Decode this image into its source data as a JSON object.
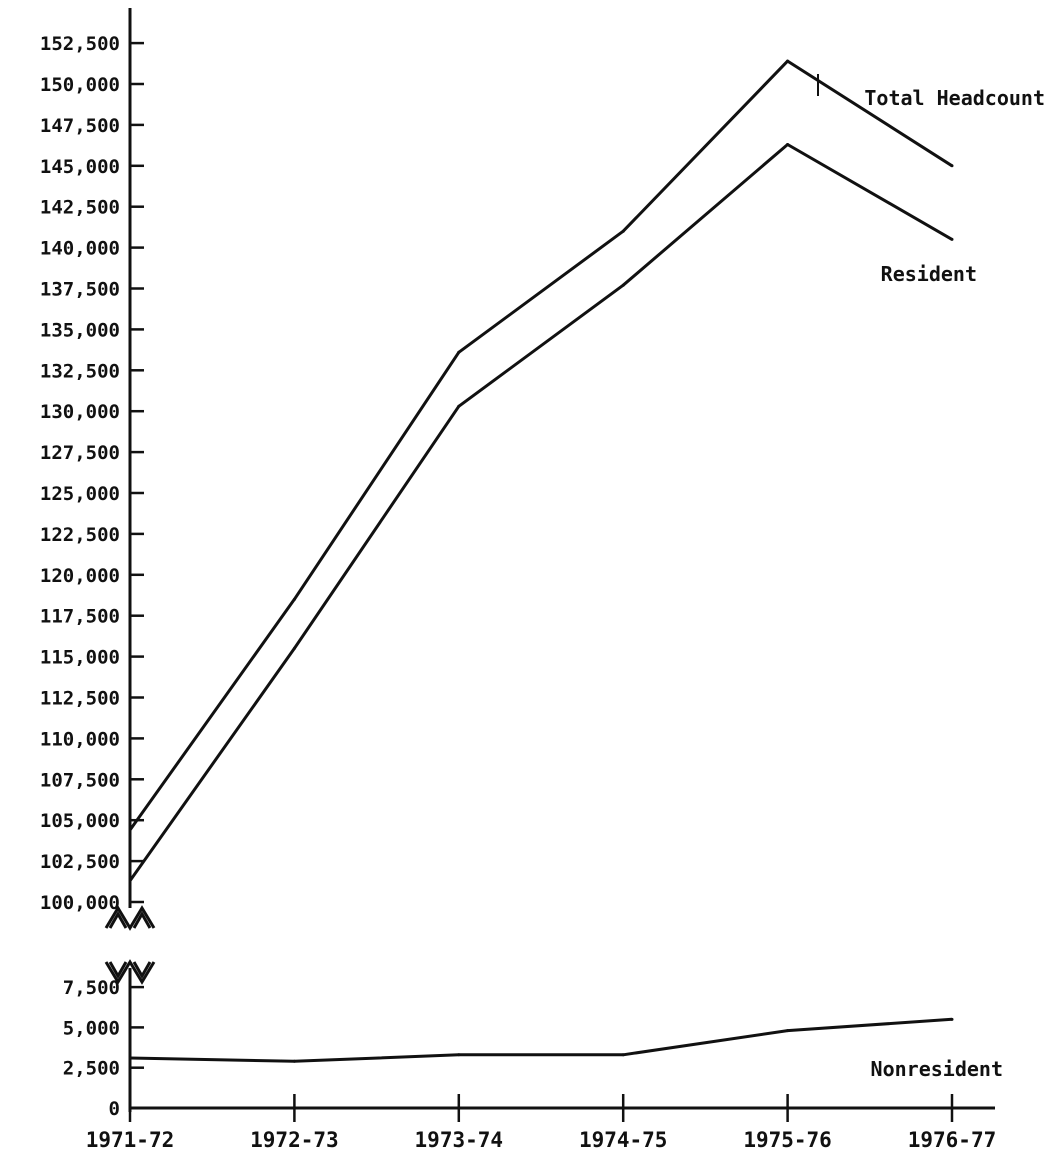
{
  "chart_data": {
    "type": "line",
    "title": "",
    "xlabel": "",
    "ylabel": "",
    "grid": false,
    "categories": [
      "1971-72",
      "1972-73",
      "1973-74",
      "1974-75",
      "1975-76",
      "1976-77"
    ],
    "upper_panel": {
      "ylim": [
        100000,
        152500
      ],
      "ticks": [
        100000,
        102500,
        105000,
        107500,
        110000,
        112500,
        115000,
        117500,
        120000,
        122500,
        125000,
        127500,
        130000,
        132500,
        135000,
        137500,
        140000,
        142500,
        145000,
        147500,
        150000,
        152500
      ],
      "tick_labels": [
        "100,000",
        "102,500",
        "105,000",
        "107,500",
        "110,000",
        "112,500",
        "115,000",
        "117,500",
        "120,000",
        "122,500",
        "125,000",
        "127,500",
        "130,000",
        "132,500",
        "135,000",
        "137,500",
        "140,000",
        "142,500",
        "145,000",
        "147,500",
        "150,000",
        "152,500"
      ]
    },
    "lower_panel": {
      "ylim": [
        0,
        7500
      ],
      "ticks": [
        0,
        2500,
        5000,
        7500
      ],
      "tick_labels": [
        "0",
        "2,500",
        "5,000",
        "7,500"
      ]
    },
    "series": [
      {
        "name": "Total Headcount",
        "panel": "upper",
        "values": [
          104400,
          118500,
          133600,
          141000,
          151400,
          145000
        ]
      },
      {
        "name": "Resident",
        "panel": "upper",
        "values": [
          101300,
          115500,
          130300,
          137700,
          146300,
          140500
        ]
      },
      {
        "name": "Nonresident",
        "panel": "lower",
        "values": [
          3100,
          2900,
          3300,
          3300,
          4800,
          5500
        ]
      }
    ]
  }
}
